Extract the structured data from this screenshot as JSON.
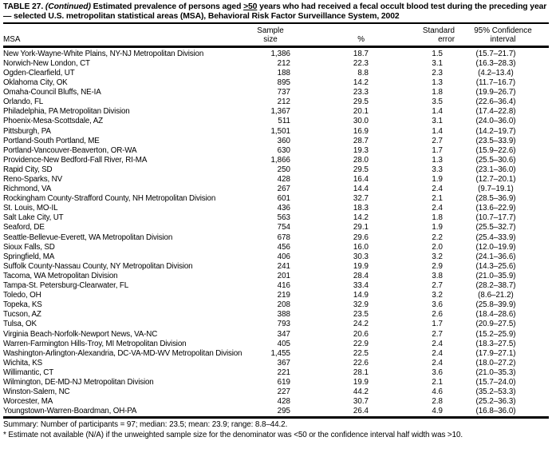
{
  "page": {
    "title": {
      "prefix": "TABLE 27. ",
      "continued": "(Continued)",
      "part1": " Estimated prevalence of persons aged ",
      "threshold": ">50",
      "part2": " years who had received a fecal occult blood test during the preceding year — selected U.S. metropolitan statistical areas (MSA), Behavioral Risk Factor Surveillance System, 2002"
    },
    "columns": {
      "msa": "MSA",
      "sample1": "Sample",
      "sample2": "size",
      "percent": "%",
      "se1": "Standard",
      "se2": "error",
      "ci1": "95% Confidence",
      "ci2": "interval"
    },
    "rows": [
      {
        "msa": "New York-Wayne-White Plains, NY-NJ Metropolitan Division",
        "n": "1,386",
        "pct": "18.7",
        "se": "1.5",
        "ci": "(15.7–21.7)"
      },
      {
        "msa": "Norwich-New London, CT",
        "n": "212",
        "pct": "22.3",
        "se": "3.1",
        "ci": "(16.3–28.3)"
      },
      {
        "msa": "Ogden-Clearfield, UT",
        "n": "188",
        "pct": "8.8",
        "se": "2.3",
        "ci": "(4.2–13.4)"
      },
      {
        "msa": "Oklahoma City, OK",
        "n": "895",
        "pct": "14.2",
        "se": "1.3",
        "ci": "(11.7–16.7)"
      },
      {
        "msa": "Omaha-Council Bluffs, NE-IA",
        "n": "737",
        "pct": "23.3",
        "se": "1.8",
        "ci": "(19.9–26.7)"
      },
      {
        "msa": "Orlando, FL",
        "n": "212",
        "pct": "29.5",
        "se": "3.5",
        "ci": "(22.6–36.4)"
      },
      {
        "msa": "Philadelphia, PA Metropolitan Division",
        "n": "1,367",
        "pct": "20.1",
        "se": "1.4",
        "ci": "(17.4–22.8)"
      },
      {
        "msa": "Phoenix-Mesa-Scottsdale, AZ",
        "n": "511",
        "pct": "30.0",
        "se": "3.1",
        "ci": "(24.0–36.0)"
      },
      {
        "msa": "Pittsburgh, PA",
        "n": "1,501",
        "pct": "16.9",
        "se": "1.4",
        "ci": "(14.2–19.7)"
      },
      {
        "msa": "Portland-South Portland, ME",
        "n": "360",
        "pct": "28.7",
        "se": "2.7",
        "ci": "(23.5–33.9)"
      },
      {
        "msa": "Portland-Vancouver-Beaverton, OR-WA",
        "n": "630",
        "pct": "19.3",
        "se": "1.7",
        "ci": "(15.9–22.6)"
      },
      {
        "msa": "Providence-New Bedford-Fall River, RI-MA",
        "n": "1,866",
        "pct": "28.0",
        "se": "1.3",
        "ci": "(25.5–30.6)"
      },
      {
        "msa": "Rapid City, SD",
        "n": "250",
        "pct": "29.5",
        "se": "3.3",
        "ci": "(23.1–36.0)"
      },
      {
        "msa": "Reno-Sparks, NV",
        "n": "428",
        "pct": "16.4",
        "se": "1.9",
        "ci": "(12.7–20.1)"
      },
      {
        "msa": "Richmond, VA",
        "n": "267",
        "pct": "14.4",
        "se": "2.4",
        "ci": "(9.7–19.1)"
      },
      {
        "msa": "Rockingham County-Strafford County, NH Metropolitan Division",
        "n": "601",
        "pct": "32.7",
        "se": "2.1",
        "ci": "(28.5–36.9)"
      },
      {
        "msa": "St. Louis, MO-IL",
        "n": "436",
        "pct": "18.3",
        "se": "2.4",
        "ci": "(13.6–22.9)"
      },
      {
        "msa": "Salt Lake City, UT",
        "n": "563",
        "pct": "14.2",
        "se": "1.8",
        "ci": "(10.7–17.7)"
      },
      {
        "msa": "Seaford, DE",
        "n": "754",
        "pct": "29.1",
        "se": "1.9",
        "ci": "(25.5–32.7)"
      },
      {
        "msa": "Seattle-Bellevue-Everett, WA Metropolitan Division",
        "n": "678",
        "pct": "29.6",
        "se": "2.2",
        "ci": "(25.4–33.9)"
      },
      {
        "msa": "Sioux Falls, SD",
        "n": "456",
        "pct": "16.0",
        "se": "2.0",
        "ci": "(12.0–19.9)"
      },
      {
        "msa": "Springfield, MA",
        "n": "406",
        "pct": "30.3",
        "se": "3.2",
        "ci": "(24.1–36.6)"
      },
      {
        "msa": "Suffolk County-Nassau County, NY Metropolitan Division",
        "n": "241",
        "pct": "19.9",
        "se": "2.9",
        "ci": "(14.3–25.6)"
      },
      {
        "msa": "Tacoma, WA Metropolitan Division",
        "n": "201",
        "pct": "28.4",
        "se": "3.8",
        "ci": "(21.0–35.9)"
      },
      {
        "msa": "Tampa-St. Petersburg-Clearwater, FL",
        "n": "416",
        "pct": "33.4",
        "se": "2.7",
        "ci": "(28.2–38.7)"
      },
      {
        "msa": "Toledo, OH",
        "n": "219",
        "pct": "14.9",
        "se": "3.2",
        "ci": "(8.6–21.2)"
      },
      {
        "msa": "Topeka, KS",
        "n": "208",
        "pct": "32.9",
        "se": "3.6",
        "ci": "(25.8–39.9)"
      },
      {
        "msa": "Tucson, AZ",
        "n": "388",
        "pct": "23.5",
        "se": "2.6",
        "ci": "(18.4–28.6)"
      },
      {
        "msa": "Tulsa, OK",
        "n": "793",
        "pct": "24.2",
        "se": "1.7",
        "ci": "(20.9–27.5)"
      },
      {
        "msa": "Virginia Beach-Norfolk-Newport News, VA-NC",
        "n": "347",
        "pct": "20.6",
        "se": "2.7",
        "ci": "(15.2–25.9)"
      },
      {
        "msa": "Warren-Farmington Hills-Troy, MI Metropolitan Division",
        "n": "405",
        "pct": "22.9",
        "se": "2.4",
        "ci": "(18.3–27.5)"
      },
      {
        "msa": "Washington-Arlington-Alexandria, DC-VA-MD-WV Metropolitan Division",
        "n": "1,455",
        "pct": "22.5",
        "se": "2.4",
        "ci": "(17.9–27.1)"
      },
      {
        "msa": "Wichita, KS",
        "n": "367",
        "pct": "22.6",
        "se": "2.4",
        "ci": "(18.0–27.2)"
      },
      {
        "msa": "Willimantic, CT",
        "n": "221",
        "pct": "28.1",
        "se": "3.6",
        "ci": "(21.0–35.3)"
      },
      {
        "msa": "Wilmington, DE-MD-NJ Metropolitan Division",
        "n": "619",
        "pct": "19.9",
        "se": "2.1",
        "ci": "(15.7–24.0)"
      },
      {
        "msa": "Winston-Salem, NC",
        "n": "227",
        "pct": "44.2",
        "se": "4.6",
        "ci": "(35.2–53.3)"
      },
      {
        "msa": "Worcester, MA",
        "n": "428",
        "pct": "30.7",
        "se": "2.8",
        "ci": "(25.2–36.3)"
      },
      {
        "msa": "Youngstown-Warren-Boardman, OH-PA",
        "n": "295",
        "pct": "26.4",
        "se": "4.9",
        "ci": "(16.8–36.0)"
      }
    ],
    "summary": "Summary: Number of participants = 97; median: 23.5; mean: 23.9; range: 8.8–44.2.",
    "footnote": "* Estimate not available (N/A) if the unweighted sample size for the denominator was <50 or the confidence interval half width was >10."
  }
}
